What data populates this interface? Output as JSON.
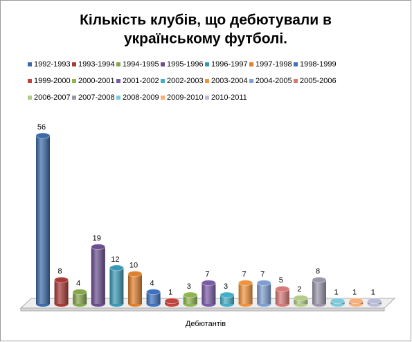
{
  "chart_data": {
    "type": "bar",
    "title": "Кількість клубів, що дебютували в українському футболі.",
    "categories": [
      "Дебютантів"
    ],
    "series": [
      {
        "name": "1992-1993",
        "color": "#3b6ba8",
        "values": [
          56
        ]
      },
      {
        "name": "1993-1994",
        "color": "#a83a36",
        "values": [
          8
        ]
      },
      {
        "name": "1994-1995",
        "color": "#86a64a",
        "values": [
          4
        ]
      },
      {
        "name": "1995-1996",
        "color": "#6a4f8f",
        "values": [
          19
        ]
      },
      {
        "name": "1996-1997",
        "color": "#3a9ab5",
        "values": [
          12
        ]
      },
      {
        "name": "1997-1998",
        "color": "#e07f2c",
        "values": [
          10
        ]
      },
      {
        "name": "1998-1999",
        "color": "#3e72c0",
        "values": [
          4
        ]
      },
      {
        "name": "1999-2000",
        "color": "#c4423e",
        "values": [
          1
        ]
      },
      {
        "name": "2000-2001",
        "color": "#8fb550",
        "values": [
          3
        ]
      },
      {
        "name": "2001-2002",
        "color": "#7a5ba8",
        "values": [
          7
        ]
      },
      {
        "name": "2002-2003",
        "color": "#43aec9",
        "values": [
          3
        ]
      },
      {
        "name": "2003-2004",
        "color": "#f1933c",
        "values": [
          7
        ]
      },
      {
        "name": "2004-2005",
        "color": "#7f9fd3",
        "values": [
          7
        ]
      },
      {
        "name": "2005-2006",
        "color": "#d77a77",
        "values": [
          5
        ]
      },
      {
        "name": "2006-2007",
        "color": "#b3cc86",
        "values": [
          2
        ]
      },
      {
        "name": "2007-2008",
        "color": "#9b97aa",
        "values": [
          8
        ]
      },
      {
        "name": "2008-2009",
        "color": "#7ccbdc",
        "values": [
          1
        ]
      },
      {
        "name": "2009-2010",
        "color": "#f7b07a",
        "values": [
          1
        ]
      },
      {
        "name": "2010-2011",
        "color": "#b9bdd8",
        "values": [
          1
        ]
      }
    ]
  }
}
